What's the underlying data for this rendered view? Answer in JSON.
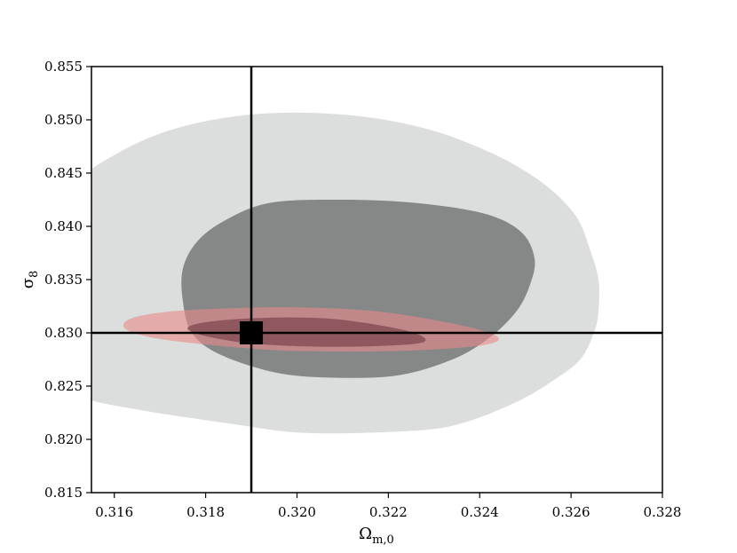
{
  "chart_data": {
    "type": "contour",
    "xlabel": "Ω",
    "xlabel_sub": "m,0",
    "ylabel": "σ",
    "ylabel_sub": "8",
    "xlim": [
      0.3155,
      0.328
    ],
    "ylim": [
      0.815,
      0.855
    ],
    "xticks": [
      "0.316",
      "0.318",
      "0.320",
      "0.322",
      "0.324",
      "0.326",
      "0.328"
    ],
    "yticks": [
      "0.815",
      "0.820",
      "0.825",
      "0.830",
      "0.835",
      "0.840",
      "0.845",
      "0.850",
      "0.855"
    ],
    "reference": {
      "x": 0.319,
      "y": 0.83,
      "marker": "square"
    },
    "series": [
      {
        "color": "#dcdedd",
        "outline": [
          [
            0.3202,
            0.8206
          ],
          [
            0.3225,
            0.8208
          ],
          [
            0.3236,
            0.8215
          ],
          [
            0.3248,
            0.8235
          ],
          [
            0.3256,
            0.8255
          ],
          [
            0.3262,
            0.8275
          ],
          [
            0.3265,
            0.83
          ],
          [
            0.3266,
            0.832
          ],
          [
            0.3266,
            0.835
          ],
          [
            0.3264,
            0.838
          ],
          [
            0.3261,
            0.841
          ],
          [
            0.3254,
            0.844
          ],
          [
            0.3243,
            0.8468
          ],
          [
            0.3228,
            0.8492
          ],
          [
            0.321,
            0.8505
          ],
          [
            0.319,
            0.8505
          ],
          [
            0.3172,
            0.849
          ],
          [
            0.3158,
            0.8462
          ],
          [
            0.3148,
            0.843
          ],
          [
            0.3141,
            0.8395
          ],
          [
            0.3137,
            0.8355
          ],
          [
            0.3136,
            0.832
          ],
          [
            0.3138,
            0.829
          ],
          [
            0.3142,
            0.826
          ],
          [
            0.3152,
            0.824
          ],
          [
            0.3165,
            0.8228
          ],
          [
            0.3185,
            0.8215
          ]
        ]
      },
      {
        "color": "#858887",
        "outline": [
          [
            0.3207,
            0.8258
          ],
          [
            0.3222,
            0.826
          ],
          [
            0.3234,
            0.8275
          ],
          [
            0.3242,
            0.8295
          ],
          [
            0.3248,
            0.832
          ],
          [
            0.3251,
            0.8345
          ],
          [
            0.3252,
            0.837
          ],
          [
            0.3249,
            0.8395
          ],
          [
            0.3241,
            0.8412
          ],
          [
            0.3226,
            0.8422
          ],
          [
            0.321,
            0.8425
          ],
          [
            0.3194,
            0.8422
          ],
          [
            0.3184,
            0.8405
          ],
          [
            0.3178,
            0.8385
          ],
          [
            0.3175,
            0.836
          ],
          [
            0.3175,
            0.833
          ],
          [
            0.3177,
            0.83
          ],
          [
            0.3183,
            0.828
          ],
          [
            0.3195,
            0.8263
          ]
        ]
      },
      {
        "color": "rgba(232,136,136,0.6)",
        "outline": [
          [
            0.3162,
            0.8306
          ],
          [
            0.3164,
            0.8314
          ],
          [
            0.3172,
            0.832
          ],
          [
            0.3185,
            0.8323
          ],
          [
            0.32,
            0.8324
          ],
          [
            0.3218,
            0.832
          ],
          [
            0.3236,
            0.8307
          ],
          [
            0.3244,
            0.8296
          ],
          [
            0.324,
            0.8288
          ],
          [
            0.3222,
            0.8283
          ],
          [
            0.32,
            0.8283
          ],
          [
            0.3185,
            0.8287
          ],
          [
            0.3172,
            0.8293
          ],
          [
            0.3165,
            0.8299
          ]
        ]
      },
      {
        "color": "rgba(100,50,60,0.55)",
        "outline": [
          [
            0.3176,
            0.8304
          ],
          [
            0.318,
            0.831
          ],
          [
            0.3192,
            0.8314
          ],
          [
            0.3208,
            0.8313
          ],
          [
            0.3224,
            0.8302
          ],
          [
            0.3228,
            0.8292
          ],
          [
            0.322,
            0.8288
          ],
          [
            0.3205,
            0.8287
          ],
          [
            0.319,
            0.829
          ],
          [
            0.318,
            0.8297
          ]
        ]
      }
    ]
  }
}
